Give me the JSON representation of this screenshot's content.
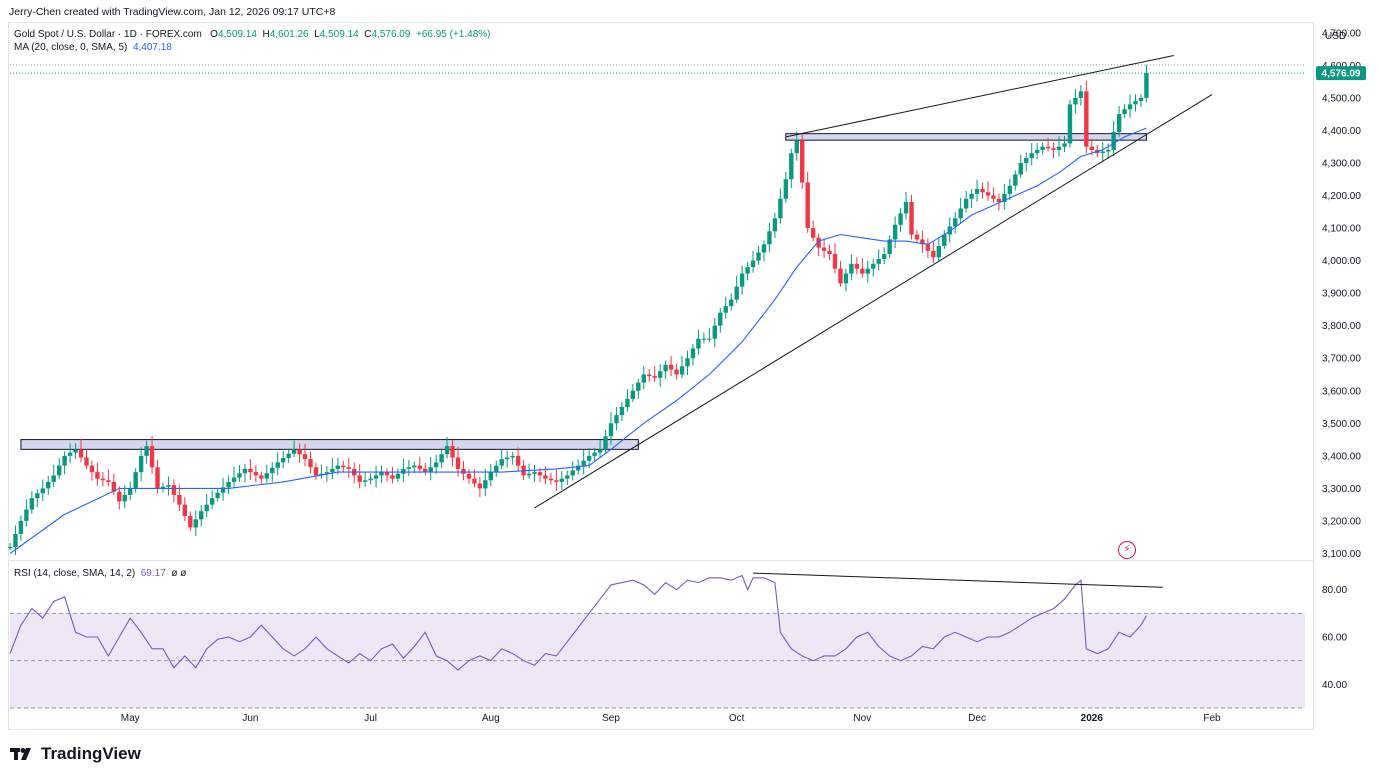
{
  "header": {
    "credit": "Jerry-Chen created with TradingView.com, Jan 12, 2026 09:17 UTC+8"
  },
  "legend": {
    "symbol": "Gold Spot / U.S. Dollar · 1D · FOREX.com",
    "open_label": "O",
    "open": "4,509.14",
    "high_label": "H",
    "high": "4,601.26",
    "low_label": "L",
    "low": "4,509.14",
    "close_label": "C",
    "close": "4,576.09",
    "change": "+66.95 (+1.48%)",
    "ma_label": "MA (20, close, 0, SMA, 5)",
    "ma_value": "4,407.18",
    "rsi_label": "RSI (14, close, SMA, 14, 2)",
    "rsi_value": "69.17",
    "rsi_extra": "ø ø"
  },
  "currency": "USD",
  "price_label": "4,576.09",
  "brand": "TradingView",
  "colors": {
    "up": "#089981",
    "down": "#f23645",
    "ma": "#2962ff",
    "rsi": "#7e57c2",
    "rsi_band": "#ede7f6",
    "zone_fill": "#c5cae9",
    "trendline": "#131722"
  },
  "chart_data": [
    {
      "type": "candlestick",
      "title": "Gold Spot / U.S. Dollar · 1D · FOREX.com",
      "x_tick_labels": [
        "May",
        "Jun",
        "Jul",
        "Aug",
        "Sep",
        "Oct",
        "Nov",
        "Dec",
        "2026",
        "Feb"
      ],
      "y_tick_labels": [
        "3,100.00",
        "3,200.00",
        "3,300.00",
        "3,400.00",
        "3,500.00",
        "3,600.00",
        "3,700.00",
        "3,800.00",
        "3,900.00",
        "4,000.00",
        "4,100.00",
        "4,200.00",
        "4,300.00",
        "4,400.00",
        "4,500.00",
        "4,600.00",
        "4,700.00"
      ],
      "y_ticks": [
        3100,
        3200,
        3300,
        3400,
        3500,
        3600,
        3700,
        3800,
        3900,
        4000,
        4100,
        4200,
        4300,
        4400,
        4500,
        4600,
        4700
      ],
      "ylim": [
        3080,
        4730
      ],
      "x_range": [
        0,
        220
      ],
      "month_index": {
        "May": 22,
        "Jun": 44,
        "Jul": 66,
        "Aug": 88,
        "Sep": 110,
        "Oct": 133,
        "Nov": 156,
        "Dec": 177,
        "2026": 198,
        "Feb": 220
      },
      "last_price": 4576.09,
      "close_path": [
        [
          0,
          3120
        ],
        [
          2,
          3200
        ],
        [
          4,
          3270
        ],
        [
          6,
          3300
        ],
        [
          8,
          3340
        ],
        [
          10,
          3400
        ],
        [
          12,
          3420
        ],
        [
          14,
          3370
        ],
        [
          16,
          3330
        ],
        [
          18,
          3320
        ],
        [
          20,
          3260
        ],
        [
          22,
          3300
        ],
        [
          24,
          3400
        ],
        [
          25,
          3430
        ],
        [
          27,
          3300
        ],
        [
          29,
          3310
        ],
        [
          31,
          3250
        ],
        [
          33,
          3180
        ],
        [
          35,
          3230
        ],
        [
          37,
          3270
        ],
        [
          40,
          3320
        ],
        [
          43,
          3360
        ],
        [
          46,
          3330
        ],
        [
          49,
          3380
        ],
        [
          52,
          3420
        ],
        [
          54,
          3390
        ],
        [
          56,
          3340
        ],
        [
          58,
          3350
        ],
        [
          60,
          3370
        ],
        [
          62,
          3360
        ],
        [
          64,
          3320
        ],
        [
          66,
          3330
        ],
        [
          68,
          3350
        ],
        [
          70,
          3330
        ],
        [
          72,
          3360
        ],
        [
          74,
          3370
        ],
        [
          76,
          3350
        ],
        [
          78,
          3380
        ],
        [
          80,
          3430
        ],
        [
          82,
          3360
        ],
        [
          84,
          3330
        ],
        [
          86,
          3300
        ],
        [
          88,
          3350
        ],
        [
          90,
          3390
        ],
        [
          92,
          3400
        ],
        [
          94,
          3340
        ],
        [
          96,
          3350
        ],
        [
          98,
          3330
        ],
        [
          100,
          3320
        ],
        [
          102,
          3340
        ],
        [
          104,
          3370
        ],
        [
          106,
          3400
        ],
        [
          108,
          3420
        ],
        [
          110,
          3500
        ],
        [
          112,
          3550
        ],
        [
          114,
          3600
        ],
        [
          116,
          3650
        ],
        [
          118,
          3640
        ],
        [
          120,
          3680
        ],
        [
          122,
          3650
        ],
        [
          124,
          3700
        ],
        [
          126,
          3760
        ],
        [
          128,
          3760
        ],
        [
          130,
          3840
        ],
        [
          132,
          3880
        ],
        [
          134,
          3960
        ],
        [
          136,
          4000
        ],
        [
          138,
          4050
        ],
        [
          140,
          4130
        ],
        [
          142,
          4250
        ],
        [
          143,
          4330
        ],
        [
          144,
          4370
        ],
        [
          145,
          4240
        ],
        [
          146,
          4100
        ],
        [
          148,
          4040
        ],
        [
          150,
          4020
        ],
        [
          152,
          3930
        ],
        [
          154,
          3990
        ],
        [
          156,
          3960
        ],
        [
          158,
          3990
        ],
        [
          160,
          4020
        ],
        [
          162,
          4110
        ],
        [
          164,
          4180
        ],
        [
          165,
          4080
        ],
        [
          167,
          4050
        ],
        [
          169,
          4010
        ],
        [
          171,
          4080
        ],
        [
          173,
          4130
        ],
        [
          175,
          4190
        ],
        [
          177,
          4220
        ],
        [
          179,
          4200
        ],
        [
          181,
          4180
        ],
        [
          183,
          4230
        ],
        [
          185,
          4300
        ],
        [
          187,
          4330
        ],
        [
          189,
          4350
        ],
        [
          191,
          4340
        ],
        [
          193,
          4360
        ],
        [
          194,
          4480
        ],
        [
          196,
          4520
        ],
        [
          197,
          4350
        ],
        [
          199,
          4330
        ],
        [
          201,
          4340
        ],
        [
          203,
          4450
        ],
        [
          205,
          4480
        ],
        [
          207,
          4500
        ],
        [
          208,
          4576
        ]
      ],
      "ma20_path": [
        [
          0,
          3100
        ],
        [
          10,
          3220
        ],
        [
          20,
          3300
        ],
        [
          30,
          3300
        ],
        [
          40,
          3300
        ],
        [
          50,
          3320
        ],
        [
          60,
          3350
        ],
        [
          70,
          3350
        ],
        [
          80,
          3350
        ],
        [
          90,
          3350
        ],
        [
          100,
          3360
        ],
        [
          106,
          3370
        ],
        [
          110,
          3420
        ],
        [
          116,
          3500
        ],
        [
          122,
          3570
        ],
        [
          128,
          3650
        ],
        [
          134,
          3750
        ],
        [
          140,
          3880
        ],
        [
          144,
          3980
        ],
        [
          148,
          4060
        ],
        [
          152,
          4080
        ],
        [
          156,
          4070
        ],
        [
          160,
          4060
        ],
        [
          164,
          4060
        ],
        [
          168,
          4050
        ],
        [
          172,
          4090
        ],
        [
          176,
          4140
        ],
        [
          180,
          4170
        ],
        [
          184,
          4200
        ],
        [
          188,
          4230
        ],
        [
          192,
          4270
        ],
        [
          196,
          4320
        ],
        [
          200,
          4340
        ],
        [
          204,
          4380
        ],
        [
          208,
          4407
        ]
      ],
      "resistance_zones": [
        {
          "x_start": 2,
          "x_end": 115,
          "low": 3420,
          "high": 3450
        },
        {
          "x_start": 142,
          "x_end": 208,
          "low": 4370,
          "high": 4390
        }
      ],
      "trendlines": [
        {
          "from": [
            96,
            3240
          ],
          "to": [
            220,
            4510
          ]
        },
        {
          "from": [
            142,
            4380
          ],
          "to": [
            213,
            4630
          ]
        }
      ]
    },
    {
      "type": "line",
      "title": "RSI (14, close, SMA, 14, 2)",
      "y_tick_labels": [
        "40.00",
        "60.00",
        "80.00"
      ],
      "y_ticks": [
        40,
        60,
        80
      ],
      "ylim": [
        30,
        90
      ],
      "band": [
        30,
        70
      ],
      "midline": 50,
      "value": 69.17,
      "path": [
        [
          0,
          53
        ],
        [
          2,
          65
        ],
        [
          4,
          72
        ],
        [
          6,
          68
        ],
        [
          8,
          75
        ],
        [
          10,
          77
        ],
        [
          12,
          62
        ],
        [
          14,
          60
        ],
        [
          16,
          60
        ],
        [
          18,
          52
        ],
        [
          20,
          60
        ],
        [
          22,
          68
        ],
        [
          24,
          62
        ],
        [
          26,
          55
        ],
        [
          28,
          55
        ],
        [
          30,
          47
        ],
        [
          32,
          52
        ],
        [
          34,
          47
        ],
        [
          36,
          55
        ],
        [
          38,
          59
        ],
        [
          40,
          60
        ],
        [
          42,
          58
        ],
        [
          44,
          60
        ],
        [
          46,
          65
        ],
        [
          48,
          60
        ],
        [
          50,
          55
        ],
        [
          52,
          52
        ],
        [
          54,
          55
        ],
        [
          56,
          60
        ],
        [
          58,
          55
        ],
        [
          60,
          52
        ],
        [
          62,
          49
        ],
        [
          64,
          53
        ],
        [
          66,
          50
        ],
        [
          68,
          55
        ],
        [
          70,
          57
        ],
        [
          72,
          51
        ],
        [
          74,
          56
        ],
        [
          76,
          62
        ],
        [
          78,
          52
        ],
        [
          80,
          50
        ],
        [
          82,
          46
        ],
        [
          84,
          50
        ],
        [
          86,
          52
        ],
        [
          88,
          50
        ],
        [
          90,
          55
        ],
        [
          92,
          53
        ],
        [
          94,
          50
        ],
        [
          96,
          48
        ],
        [
          98,
          53
        ],
        [
          100,
          52
        ],
        [
          102,
          58
        ],
        [
          104,
          64
        ],
        [
          106,
          70
        ],
        [
          108,
          76
        ],
        [
          110,
          82
        ],
        [
          112,
          83
        ],
        [
          114,
          84
        ],
        [
          116,
          82
        ],
        [
          118,
          78
        ],
        [
          120,
          83
        ],
        [
          122,
          80
        ],
        [
          124,
          84
        ],
        [
          126,
          83
        ],
        [
          128,
          85
        ],
        [
          130,
          85
        ],
        [
          132,
          84
        ],
        [
          134,
          86
        ],
        [
          135,
          80
        ],
        [
          136,
          85
        ],
        [
          138,
          85
        ],
        [
          140,
          83
        ],
        [
          141,
          62
        ],
        [
          143,
          55
        ],
        [
          145,
          52
        ],
        [
          147,
          50
        ],
        [
          149,
          52
        ],
        [
          151,
          52
        ],
        [
          153,
          55
        ],
        [
          155,
          60
        ],
        [
          157,
          62
        ],
        [
          159,
          56
        ],
        [
          161,
          52
        ],
        [
          163,
          50
        ],
        [
          165,
          52
        ],
        [
          167,
          56
        ],
        [
          169,
          55
        ],
        [
          171,
          60
        ],
        [
          173,
          62
        ],
        [
          175,
          60
        ],
        [
          177,
          58
        ],
        [
          179,
          60
        ],
        [
          181,
          60
        ],
        [
          183,
          62
        ],
        [
          185,
          65
        ],
        [
          187,
          68
        ],
        [
          189,
          70
        ],
        [
          191,
          72
        ],
        [
          193,
          76
        ],
        [
          195,
          82
        ],
        [
          196,
          84
        ],
        [
          197,
          55
        ],
        [
          199,
          53
        ],
        [
          201,
          55
        ],
        [
          203,
          62
        ],
        [
          205,
          60
        ],
        [
          207,
          65
        ],
        [
          208,
          69
        ]
      ],
      "divergence_line": {
        "from": [
          136,
          87
        ],
        "to": [
          211,
          81
        ]
      }
    }
  ]
}
